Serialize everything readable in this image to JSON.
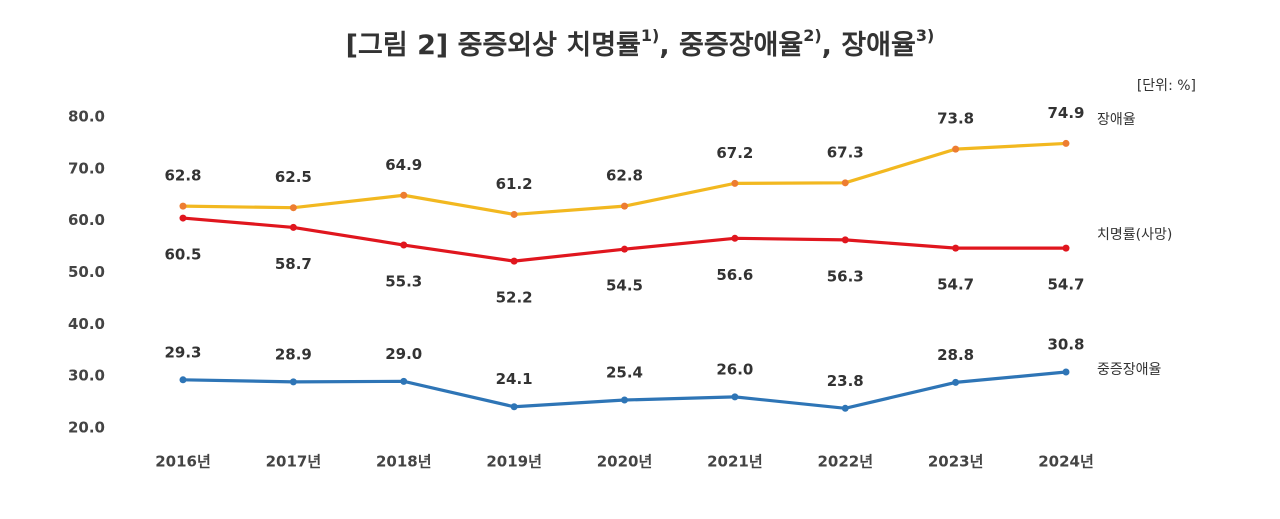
{
  "chart_data": {
    "type": "line",
    "title_segments": [
      "[그림 2] 중증외상 치명률",
      "1)",
      ", 중증장애율",
      "2)",
      ", 장애율",
      "3)"
    ],
    "unit": "[단위: %]",
    "categories": [
      "2016년",
      "2017년",
      "2018년",
      "2019년",
      "2020년",
      "2021년",
      "2022년",
      "2023년",
      "2024년"
    ],
    "series": [
      {
        "name": "장애율",
        "color": "#f2b820",
        "marker_color": "#ed7d31",
        "values": [
          62.8,
          62.5,
          64.9,
          61.2,
          62.8,
          67.2,
          67.3,
          73.8,
          74.9
        ],
        "value_labels": [
          "62.8",
          "62.5",
          "64.9",
          "61.2",
          "62.8",
          "67.2",
          "67.3",
          "73.8",
          "74.9"
        ]
      },
      {
        "name": "치명률(사망)",
        "color": "#e0161e",
        "marker_color": "#e0161e",
        "values": [
          60.5,
          58.7,
          55.3,
          52.2,
          54.5,
          56.6,
          56.3,
          54.7,
          54.7
        ],
        "value_labels": [
          "60.5",
          "58.7",
          "55.3",
          "52.2",
          "54.5",
          "56.6",
          "56.3",
          "54.7",
          "54.7"
        ]
      },
      {
        "name": "중증장애율",
        "color": "#2e75b6",
        "marker_color": "#2e75b6",
        "values": [
          29.3,
          28.9,
          29.0,
          24.1,
          25.4,
          26.0,
          23.8,
          28.8,
          30.8
        ],
        "value_labels": [
          "29.3",
          "28.9",
          "29.0",
          "24.1",
          "25.4",
          "26.0",
          "23.8",
          "28.8",
          "30.8"
        ]
      }
    ],
    "ylim": [
      20,
      80
    ],
    "yticks": [
      {
        "value": 20,
        "label": "20.0"
      },
      {
        "value": 30,
        "label": "30.0"
      },
      {
        "value": 40,
        "label": "40.0"
      },
      {
        "value": 50,
        "label": "50.0"
      },
      {
        "value": 60,
        "label": "60.0"
      },
      {
        "value": 70,
        "label": "70.0"
      },
      {
        "value": 80,
        "label": "80.0"
      }
    ],
    "grid": false
  }
}
